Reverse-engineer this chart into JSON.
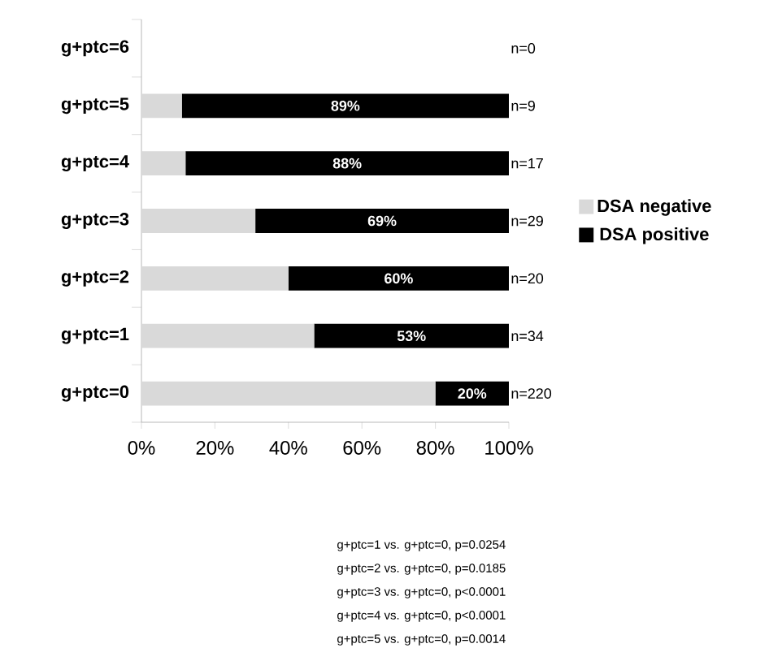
{
  "chart_data": {
    "type": "bar",
    "orientation": "horizontal",
    "stacked": true,
    "categories": [
      "g+ptc=6",
      "g+ptc=5",
      "g+ptc=4",
      "g+ptc=3",
      "g+ptc=2",
      "g+ptc=1",
      "g+ptc=0"
    ],
    "series": [
      {
        "name": "DSA negative",
        "color": "#d9d9d9",
        "values": [
          null,
          11,
          12,
          31,
          40,
          47,
          80
        ]
      },
      {
        "name": "DSA positive",
        "color": "#000000",
        "values": [
          null,
          89,
          88,
          69,
          60,
          53,
          20
        ],
        "value_labels": [
          null,
          "89%",
          "88%",
          "69%",
          "60%",
          "53%",
          "20%"
        ]
      }
    ],
    "xlim": [
      0,
      100
    ],
    "xticks": [
      {
        "value": 0,
        "label": "0%"
      },
      {
        "value": 20,
        "label": "20%"
      },
      {
        "value": 40,
        "label": "40%"
      },
      {
        "value": 60,
        "label": "60%"
      },
      {
        "value": 80,
        "label": "80%"
      },
      {
        "value": 100,
        "label": "100%"
      }
    ],
    "legend": "right",
    "annotations": [
      "n=0",
      "n=9",
      "n=17",
      "n=29",
      "n=20",
      "n=34",
      "n=220",
      "g+ptc=1 vs. g+ptc=0, p=0.0254",
      "g+ptc=2 vs. g+ptc=0, p=0.0185",
      "g+ptc=3 vs. g+ptc=0, p<0.0001",
      "g+ptc=4 vs. g+ptc=0, p<0.0001",
      "g+ptc=5 vs. g+ptc=0, p=0.0014"
    ]
  }
}
